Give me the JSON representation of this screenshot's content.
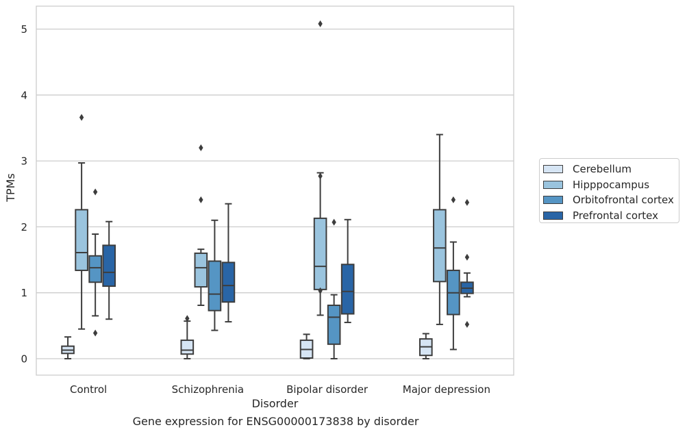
{
  "chart_data": {
    "type": "box",
    "title": "Gene expression for ENSG00000173838 by disorder",
    "xlabel": "Disorder",
    "ylabel": "TPMs",
    "ylim": [
      -0.25,
      5.35
    ],
    "yticks": [
      0,
      1,
      2,
      3,
      4,
      5
    ],
    "grid": true,
    "legend_position": "right",
    "categories": [
      "Control",
      "Schizophrenia",
      "Bipolar disorder",
      "Major depression"
    ],
    "series": [
      {
        "name": "Cerebellum",
        "color": "#d6e5f4",
        "boxes": [
          {
            "whislo": 0.0,
            "q1": 0.08,
            "med": 0.13,
            "q3": 0.19,
            "whishi": 0.33,
            "fliers": []
          },
          {
            "whislo": 0.0,
            "q1": 0.07,
            "med": 0.13,
            "q3": 0.28,
            "whishi": 0.57,
            "fliers": [
              0.61
            ]
          },
          {
            "whislo": 0.0,
            "q1": 0.01,
            "med": 0.14,
            "q3": 0.28,
            "whishi": 0.37,
            "fliers": []
          },
          {
            "whislo": 0.0,
            "q1": 0.05,
            "med": 0.18,
            "q3": 0.3,
            "whishi": 0.38,
            "fliers": []
          }
        ]
      },
      {
        "name": "Hipppocampus",
        "color": "#9ac4de",
        "boxes": [
          {
            "whislo": 0.45,
            "q1": 1.34,
            "med": 1.61,
            "q3": 2.26,
            "whishi": 2.97,
            "fliers": [
              3.66
            ]
          },
          {
            "whislo": 0.81,
            "q1": 1.09,
            "med": 1.38,
            "q3": 1.6,
            "whishi": 1.66,
            "fliers": [
              3.2,
              2.41
            ]
          },
          {
            "whislo": 0.66,
            "q1": 1.05,
            "med": 1.4,
            "q3": 2.13,
            "whishi": 2.82,
            "fliers": [
              2.77,
              1.03,
              5.08
            ]
          },
          {
            "whislo": 0.52,
            "q1": 1.17,
            "med": 1.68,
            "q3": 2.26,
            "whishi": 3.4,
            "fliers": []
          }
        ]
      },
      {
        "name": "Orbitofrontal cortex",
        "color": "#5595c4",
        "boxes": [
          {
            "whislo": 0.65,
            "q1": 1.16,
            "med": 1.38,
            "q3": 1.56,
            "whishi": 1.89,
            "fliers": [
              2.53,
              0.39
            ]
          },
          {
            "whislo": 0.43,
            "q1": 0.73,
            "med": 0.98,
            "q3": 1.48,
            "whishi": 2.1,
            "fliers": []
          },
          {
            "whislo": 0.0,
            "q1": 0.22,
            "med": 0.63,
            "q3": 0.81,
            "whishi": 0.97,
            "fliers": [
              2.07
            ]
          },
          {
            "whislo": 0.14,
            "q1": 0.67,
            "med": 1.0,
            "q3": 1.34,
            "whishi": 1.77,
            "fliers": [
              2.41
            ]
          }
        ]
      },
      {
        "name": "Prefrontal cortex",
        "color": "#2965a6",
        "boxes": [
          {
            "whislo": 0.6,
            "q1": 1.1,
            "med": 1.31,
            "q3": 1.72,
            "whishi": 2.08,
            "fliers": []
          },
          {
            "whislo": 0.56,
            "q1": 0.86,
            "med": 1.11,
            "q3": 1.46,
            "whishi": 2.35,
            "fliers": []
          },
          {
            "whislo": 0.55,
            "q1": 0.68,
            "med": 1.02,
            "q3": 1.43,
            "whishi": 2.11,
            "fliers": []
          },
          {
            "whislo": 0.94,
            "q1": 0.99,
            "med": 1.07,
            "q3": 1.16,
            "whishi": 1.3,
            "fliers": [
              2.37,
              1.54,
              0.52
            ]
          }
        ]
      }
    ]
  }
}
